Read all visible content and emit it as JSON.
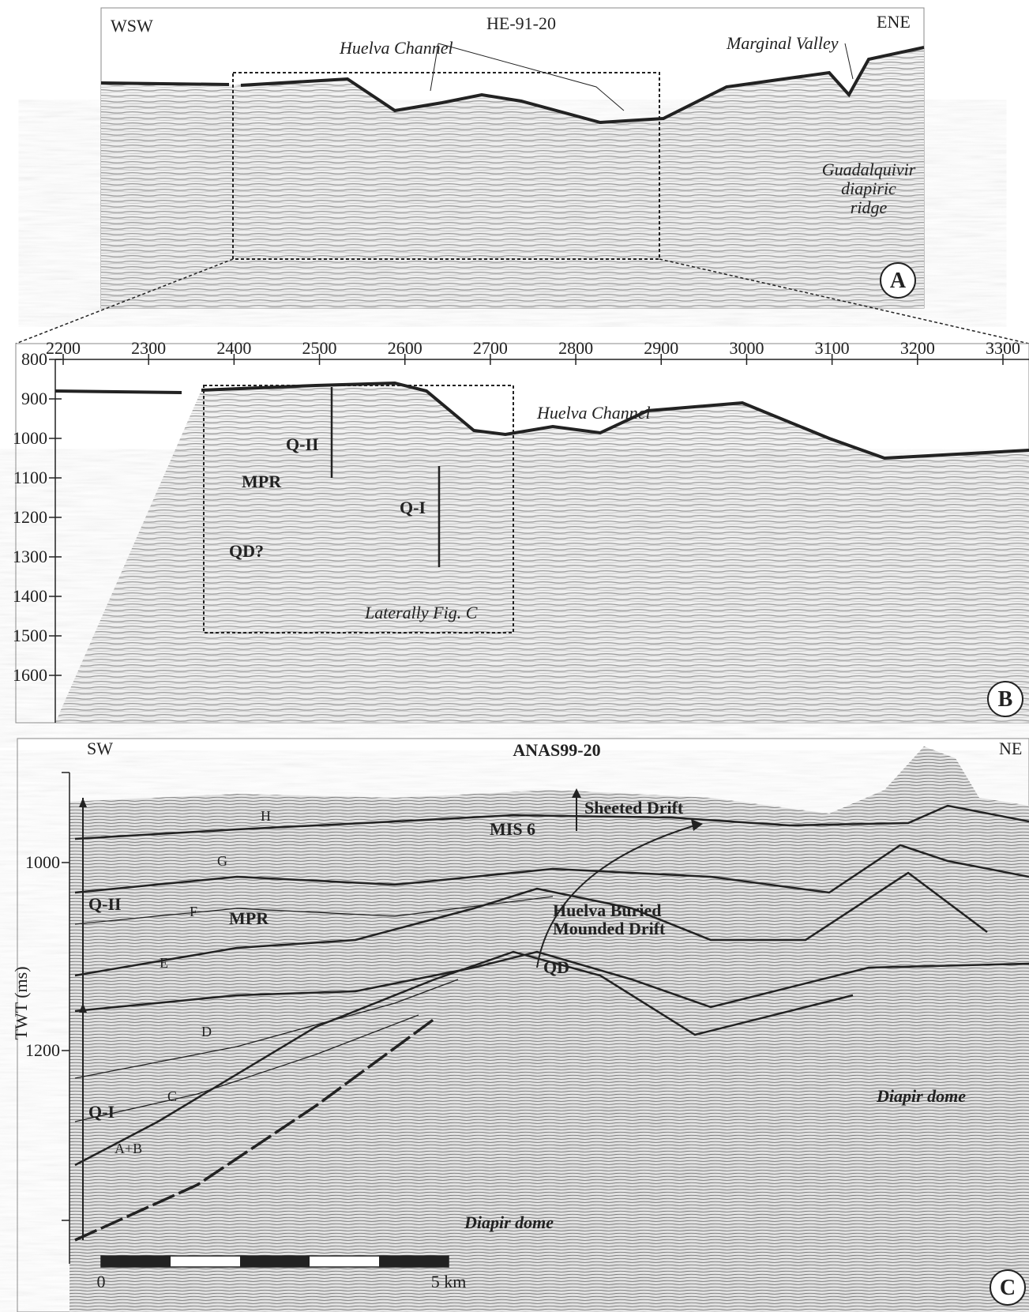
{
  "panel_a": {
    "left": "WSW",
    "title": "HE-91-20",
    "right": "ENE",
    "channel": "Huelva  Channel",
    "valley": "Marginal Valley",
    "ridge": [
      "Guadalquivir",
      "diapiric",
      "ridge"
    ],
    "letter": "A"
  },
  "panel_b": {
    "xticks": [
      2200,
      2300,
      2400,
      2500,
      2600,
      2700,
      2800,
      2900,
      3000,
      3100,
      3200,
      3300
    ],
    "yticks": [
      800,
      900,
      1000,
      1100,
      1200,
      1300,
      1400,
      1500,
      1600
    ],
    "channel": "Huelva  Channel",
    "q2": "Q-II",
    "mpr": "MPR",
    "q1": "Q-I",
    "qd": "QD?",
    "box_note": "Laterally Fig. C",
    "letter": "B"
  },
  "panel_c": {
    "left": "SW",
    "title": "ANAS99-20",
    "right": "NE",
    "units": [
      "H",
      "G",
      "F",
      "E",
      "D",
      "C",
      "A+B"
    ],
    "q2": "Q-II",
    "q1": "Q-I",
    "mpr": "MPR",
    "mis": "MIS 6",
    "sheeted": "Sheeted Drift",
    "mounded": [
      "Huelva Buried",
      "Mounded Drift"
    ],
    "qd": "QD",
    "diapir_right": "Diapir dome",
    "diapir_bottom": "Diapir dome",
    "axis_label": "TWT (ms)",
    "yticks": [
      1000,
      1200
    ],
    "scale": [
      "0",
      "5 km"
    ],
    "letter": "C"
  }
}
